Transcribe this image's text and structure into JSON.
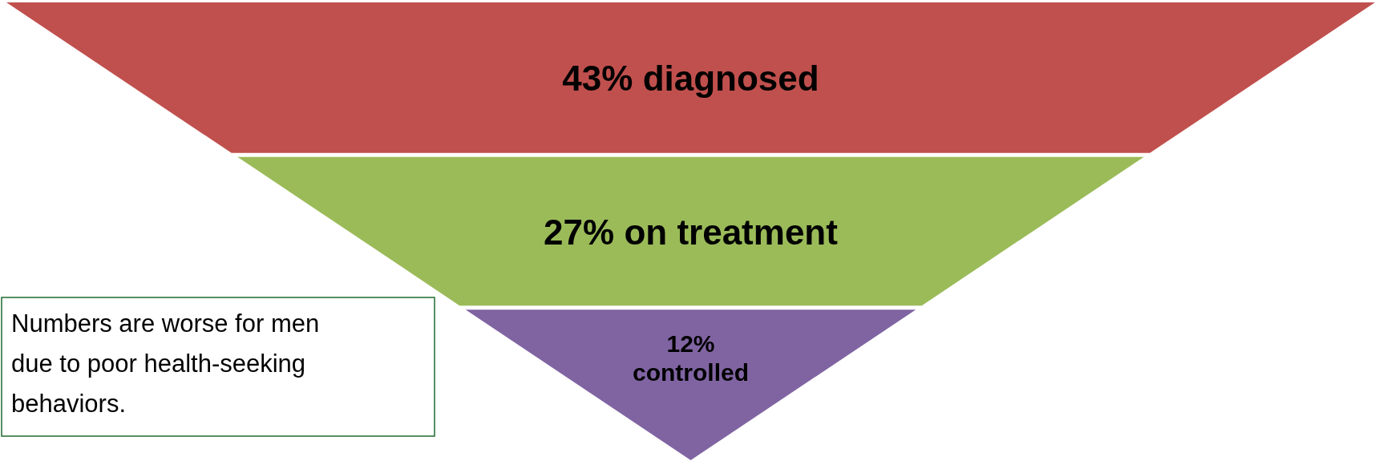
{
  "chart_data": {
    "type": "other",
    "categories": [
      "diagnosed",
      "on treatment",
      "controlled"
    ],
    "values": [
      43,
      27,
      12
    ],
    "value_labels": [
      "43%",
      "27%",
      "12%"
    ],
    "colors": [
      "#c0504d",
      "#9bbb59",
      "#8064a2"
    ],
    "annotations": [
      "Numbers are worse for men due to poor health-seeking behaviors."
    ]
  }
}
